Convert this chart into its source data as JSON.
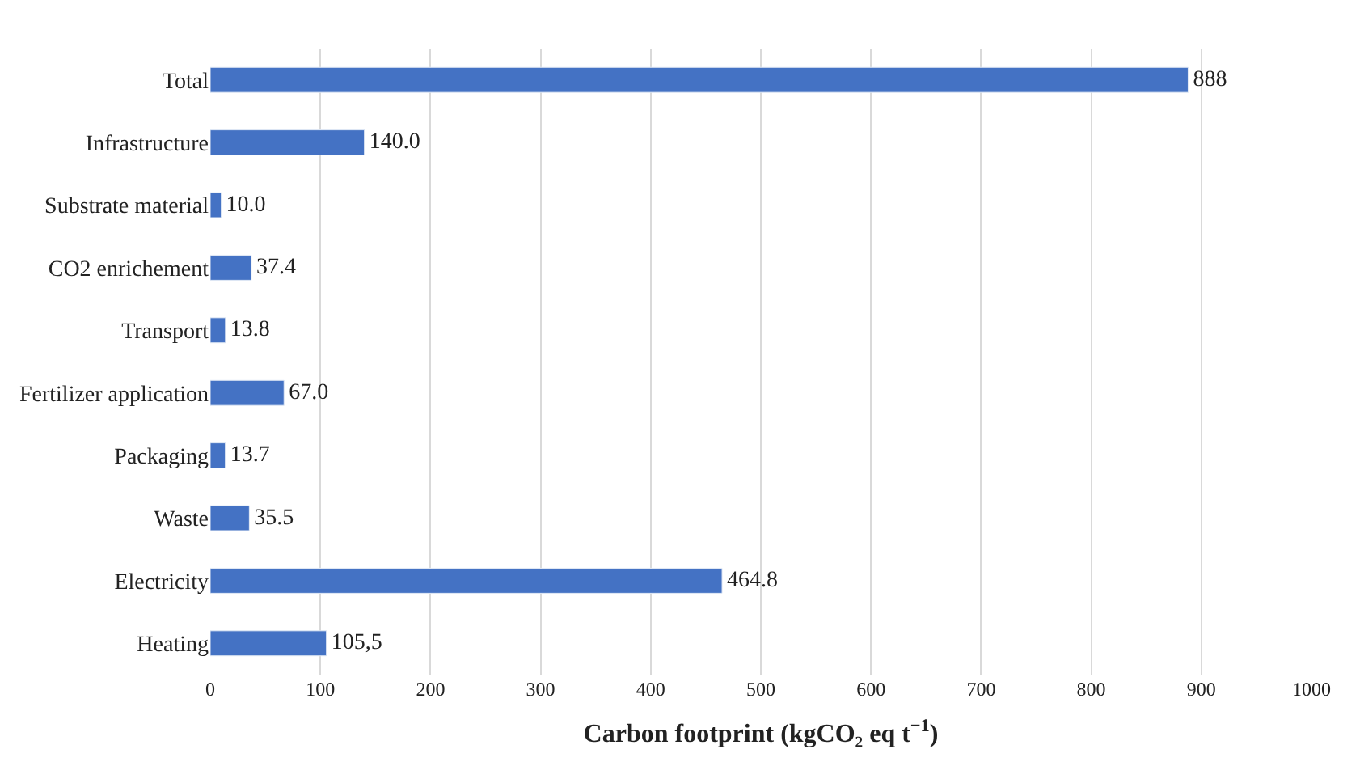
{
  "chart_data": {
    "type": "bar",
    "orientation": "horizontal",
    "xlabel": "Carbon footprint (kgCO₂ eq t$^{−1}$)",
    "categories": [
      "Total",
      "Infrastructure",
      "Substrate material",
      "CO2 enrichement",
      "Transport",
      "Fertilizer application",
      "Packaging",
      "Waste",
      "Electricity",
      "Heating"
    ],
    "values": [
      888,
      140.0,
      10.0,
      37.4,
      13.8,
      67.0,
      13.7,
      35.5,
      464.8,
      105.5
    ],
    "value_labels": [
      "888",
      "140.0",
      "10.0",
      "37.4",
      "13.8",
      "67.0",
      "13.7",
      "35.5",
      "464.8",
      "105,5"
    ],
    "color": "#4472c4",
    "xlim": [
      0,
      1000
    ],
    "xticks": [
      0,
      100,
      200,
      300,
      400,
      500,
      600,
      700,
      800,
      900,
      1000
    ],
    "grid": "x"
  }
}
